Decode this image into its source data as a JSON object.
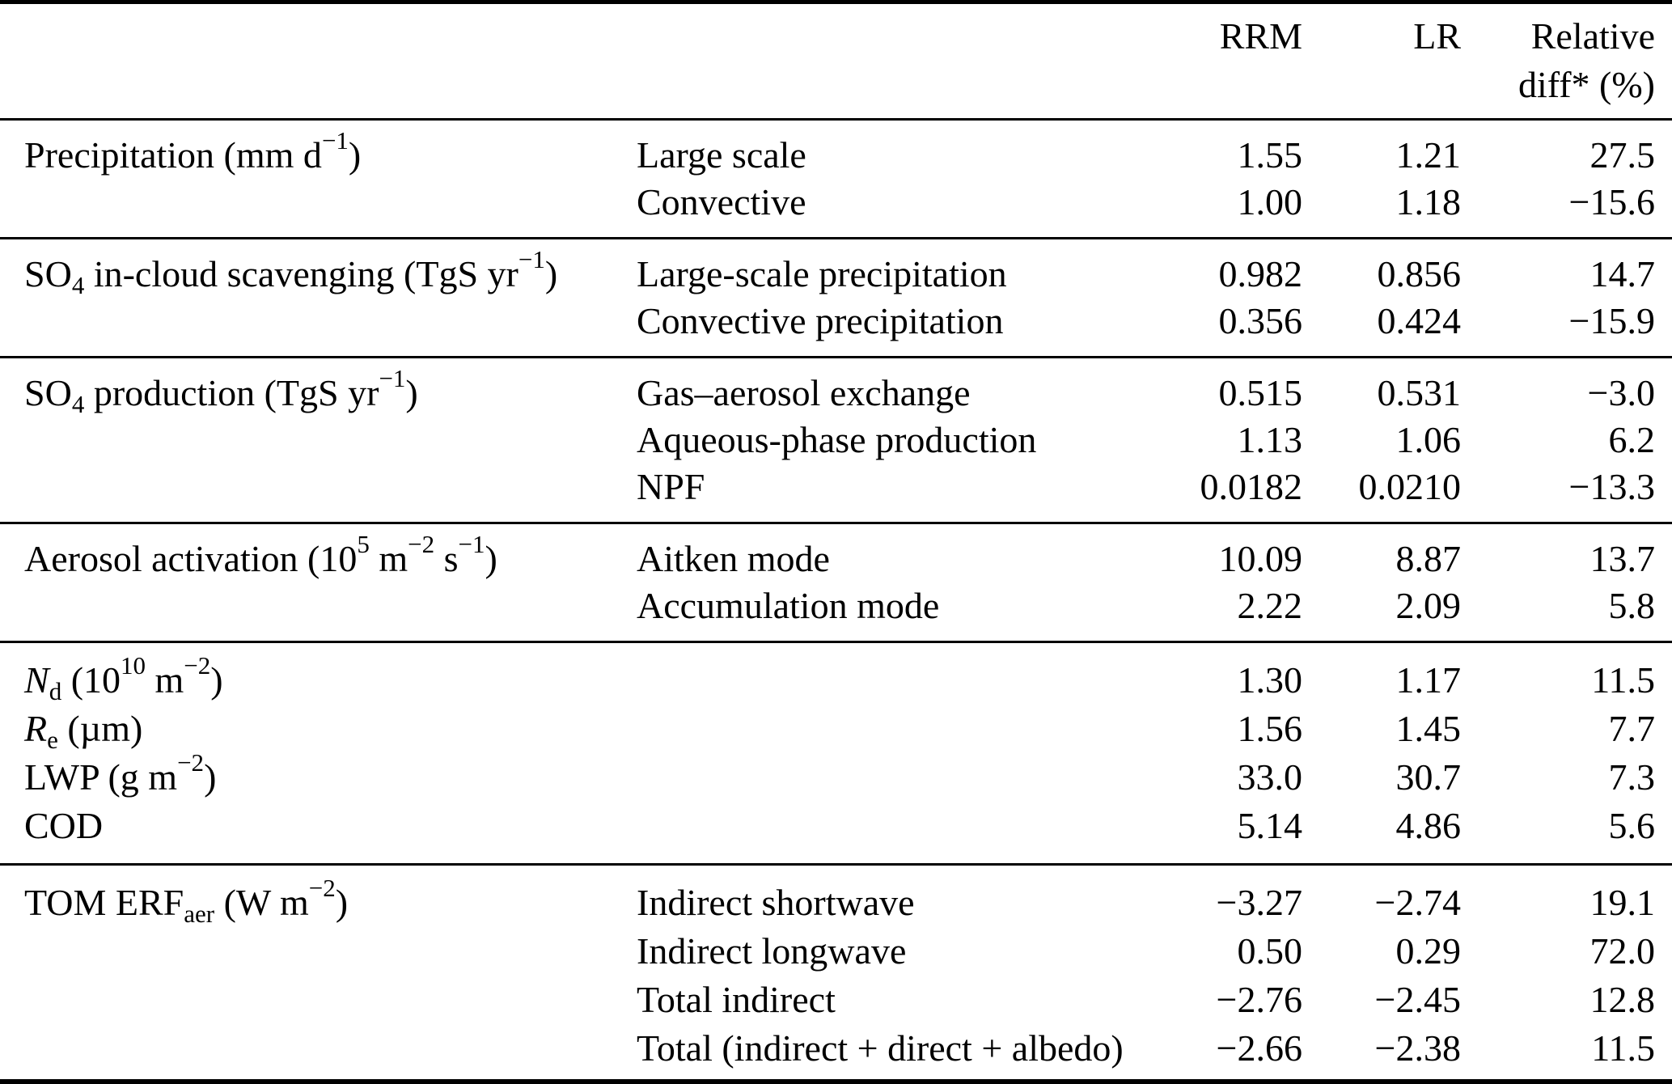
{
  "header": {
    "rrm": "RRM",
    "lr": "LR",
    "rel_line1": "Relative",
    "rel_line2": "diff* (%)"
  },
  "sections": [
    {
      "name": "precipitation",
      "rows": [
        {
          "param": "Precipitation (mm d^−1^)",
          "sub": "Large scale",
          "rrm": "1.55",
          "lr": "1.21",
          "diff": "27.5"
        },
        {
          "param": "",
          "sub": "Convective",
          "rrm": "1.00",
          "lr": "1.18",
          "diff": "−15.6"
        }
      ]
    },
    {
      "name": "so4-in-cloud-scavenging",
      "rows": [
        {
          "param": "SO~4~ in-cloud scavenging (TgS yr^−1^)",
          "sub": "Large-scale precipitation",
          "rrm": "0.982",
          "lr": "0.856",
          "diff": "14.7"
        },
        {
          "param": "",
          "sub": "Convective precipitation",
          "rrm": "0.356",
          "lr": "0.424",
          "diff": "−15.9"
        }
      ]
    },
    {
      "name": "so4-production",
      "rows": [
        {
          "param": "SO~4~ production (TgS yr^−1^)",
          "sub": "Gas–aerosol exchange",
          "rrm": "0.515",
          "lr": "0.531",
          "diff": "−3.0"
        },
        {
          "param": "",
          "sub": "Aqueous-phase production",
          "rrm": "1.13",
          "lr": "1.06",
          "diff": "6.2"
        },
        {
          "param": "",
          "sub": "NPF",
          "rrm": "0.0182",
          "lr": "0.0210",
          "diff": "−13.3"
        }
      ]
    },
    {
      "name": "aerosol-activation",
      "rows": [
        {
          "param": "Aerosol activation (10^5^ m^−2^ s^−1^)",
          "sub": "Aitken mode",
          "rrm": "10.09",
          "lr": "8.87",
          "diff": "13.7"
        },
        {
          "param": "",
          "sub": "Accumulation mode",
          "rrm": "2.22",
          "lr": "2.09",
          "diff": "5.8"
        }
      ]
    },
    {
      "name": "cloud-properties",
      "rows": [
        {
          "param": "*N*~d~ (10^10^ m^−2^)",
          "sub": "",
          "rrm": "1.30",
          "lr": "1.17",
          "diff": "11.5"
        },
        {
          "param": "*R*~e~ (µm)",
          "sub": "",
          "rrm": "1.56",
          "lr": "1.45",
          "diff": "7.7"
        },
        {
          "param": "LWP (g m^−2^)",
          "sub": "",
          "rrm": "33.0",
          "lr": "30.7",
          "diff": "7.3"
        },
        {
          "param": "COD",
          "sub": "",
          "rrm": "5.14",
          "lr": "4.86",
          "diff": "5.6"
        }
      ]
    },
    {
      "name": "tom-erf-aer",
      "rows": [
        {
          "param": "TOM ERF~aer~ (W m^−2^)",
          "sub": "Indirect shortwave",
          "rrm": "−3.27",
          "lr": "−2.74",
          "diff": "19.1"
        },
        {
          "param": "",
          "sub": "Indirect longwave",
          "rrm": "0.50",
          "lr": "0.29",
          "diff": "72.0"
        },
        {
          "param": "",
          "sub": "Total indirect",
          "rrm": "−2.76",
          "lr": "−2.45",
          "diff": "12.8"
        },
        {
          "param": "",
          "sub": "Total (indirect + direct + albedo)",
          "rrm": "−2.66",
          "lr": "−2.38",
          "diff": "11.5"
        }
      ]
    }
  ]
}
